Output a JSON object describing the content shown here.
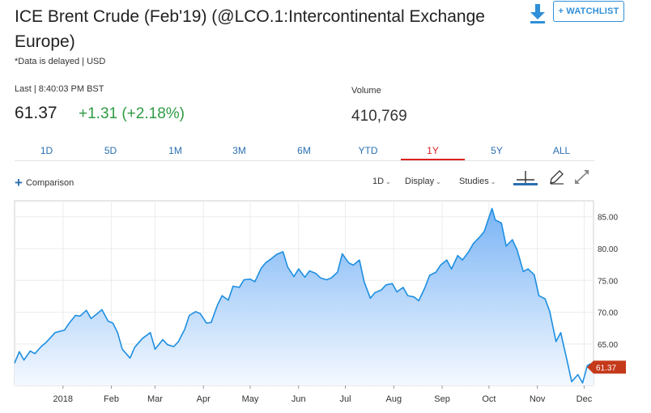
{
  "header": {
    "title": "ICE Brent Crude (Feb'19) (@LCO.1:Intercontinental Exchange Europe)",
    "note": "*Data is delayed | USD",
    "watchlist_label": "+ WATCHLIST"
  },
  "quote": {
    "last_label": "Last | 8:40:03 PM BST",
    "price": "61.37",
    "change": "+1.31 (+2.18%)",
    "volume_label": "Volume",
    "volume": "410,769"
  },
  "range_tabs": [
    "1D",
    "5D",
    "1M",
    "3M",
    "6M",
    "YTD",
    "1Y",
    "5Y",
    "ALL"
  ],
  "active_tab": "1Y",
  "toolbar": {
    "comparison": "Comparison",
    "interval": "1D",
    "display": "Display",
    "studies": "Studies"
  },
  "colors": {
    "line": "#1d8fe0",
    "fill_top": "#7ab4f5",
    "fill_bottom": "#f5f9ff",
    "positive": "#2e9b43",
    "active_tab": "#dd2222",
    "marker": "#c4391a"
  },
  "icons": [
    "download-icon",
    "crosshair-icon",
    "pencil-icon",
    "expand-icon"
  ],
  "chart_data": {
    "type": "area",
    "ylim": [
      58.5,
      87.5
    ],
    "yticks": [
      65,
      70,
      75,
      80,
      85
    ],
    "yticklabels": [
      "65.00",
      "70.00",
      "75.00",
      "80.00",
      "85.00"
    ],
    "xlim": [
      "2017-12-01",
      "2018-12-07"
    ],
    "xticks": [
      "2018-01-01",
      "2018-02-01",
      "2018-03-01",
      "2018-04-01",
      "2018-05-01",
      "2018-06-01",
      "2018-07-01",
      "2018-08-01",
      "2018-09-01",
      "2018-10-01",
      "2018-11-01",
      "2018-12-01"
    ],
    "xticklabels": [
      "2018",
      "Feb",
      "Mar",
      "Apr",
      "May",
      "Jun",
      "Jul",
      "Aug",
      "Sep",
      "Oct",
      "Nov",
      "Dec"
    ],
    "last_value_label": "61.37",
    "grid": true,
    "series": [
      {
        "x": [
          "2017-12-01",
          "2017-12-04",
          "2017-12-07",
          "2017-12-11",
          "2017-12-14",
          "2017-12-18",
          "2017-12-21",
          "2017-12-27",
          "2018-01-02",
          "2018-01-05",
          "2018-01-09",
          "2018-01-12",
          "2018-01-16",
          "2018-01-19",
          "2018-01-23",
          "2018-01-26",
          "2018-01-30",
          "2018-02-02",
          "2018-02-05",
          "2018-02-08",
          "2018-02-13",
          "2018-02-16",
          "2018-02-21",
          "2018-02-26",
          "2018-03-01",
          "2018-03-06",
          "2018-03-09",
          "2018-03-13",
          "2018-03-16",
          "2018-03-20",
          "2018-03-23",
          "2018-03-27",
          "2018-03-30",
          "2018-04-03",
          "2018-04-06",
          "2018-04-10",
          "2018-04-13",
          "2018-04-17",
          "2018-04-20",
          "2018-04-24",
          "2018-04-27",
          "2018-05-01",
          "2018-05-04",
          "2018-05-08",
          "2018-05-11",
          "2018-05-15",
          "2018-05-18",
          "2018-05-22",
          "2018-05-25",
          "2018-05-29",
          "2018-06-01",
          "2018-06-05",
          "2018-06-08",
          "2018-06-12",
          "2018-06-15",
          "2018-06-19",
          "2018-06-22",
          "2018-06-26",
          "2018-06-29",
          "2018-07-03",
          "2018-07-06",
          "2018-07-10",
          "2018-07-13",
          "2018-07-17",
          "2018-07-20",
          "2018-07-24",
          "2018-07-27",
          "2018-07-31",
          "2018-08-03",
          "2018-08-07",
          "2018-08-10",
          "2018-08-14",
          "2018-08-17",
          "2018-08-21",
          "2018-08-24",
          "2018-08-28",
          "2018-08-31",
          "2018-09-04",
          "2018-09-07",
          "2018-09-11",
          "2018-09-14",
          "2018-09-18",
          "2018-09-21",
          "2018-09-25",
          "2018-09-28",
          "2018-10-01",
          "2018-10-03",
          "2018-10-05",
          "2018-10-09",
          "2018-10-12",
          "2018-10-16",
          "2018-10-19",
          "2018-10-23",
          "2018-10-26",
          "2018-10-30",
          "2018-11-02",
          "2018-11-06",
          "2018-11-09",
          "2018-11-13",
          "2018-11-16",
          "2018-11-20",
          "2018-11-23",
          "2018-11-27",
          "2018-11-30",
          "2018-12-03",
          "2018-12-05",
          "2018-12-07"
        ],
        "y": [
          62.0,
          63.8,
          62.5,
          63.9,
          63.5,
          64.6,
          65.2,
          66.8,
          67.2,
          68.3,
          69.5,
          69.4,
          70.3,
          69.0,
          69.8,
          70.4,
          68.6,
          68.3,
          66.8,
          64.2,
          62.8,
          64.5,
          65.9,
          66.8,
          64.2,
          65.7,
          64.9,
          64.6,
          65.4,
          67.3,
          69.5,
          70.1,
          69.8,
          68.3,
          68.4,
          71.1,
          72.6,
          71.9,
          74.1,
          73.9,
          75.1,
          75.2,
          74.8,
          76.9,
          77.8,
          78.5,
          79.1,
          79.5,
          77.1,
          75.6,
          76.8,
          75.5,
          76.5,
          76.1,
          75.4,
          75.1,
          75.4,
          76.3,
          79.2,
          77.8,
          77.4,
          78.2,
          74.8,
          72.2,
          73.1,
          73.5,
          74.3,
          74.5,
          73.2,
          73.9,
          72.6,
          72.4,
          71.8,
          73.9,
          75.8,
          76.3,
          77.4,
          78.2,
          76.8,
          78.9,
          78.2,
          79.5,
          80.8,
          81.8,
          82.7,
          84.9,
          86.3,
          84.5,
          84.0,
          80.4,
          81.4,
          79.8,
          76.4,
          76.8,
          75.9,
          72.6,
          72.1,
          70.1,
          65.4,
          66.8,
          62.5,
          59.1,
          60.2,
          58.9,
          61.6,
          61.9,
          61.37
        ]
      }
    ]
  }
}
